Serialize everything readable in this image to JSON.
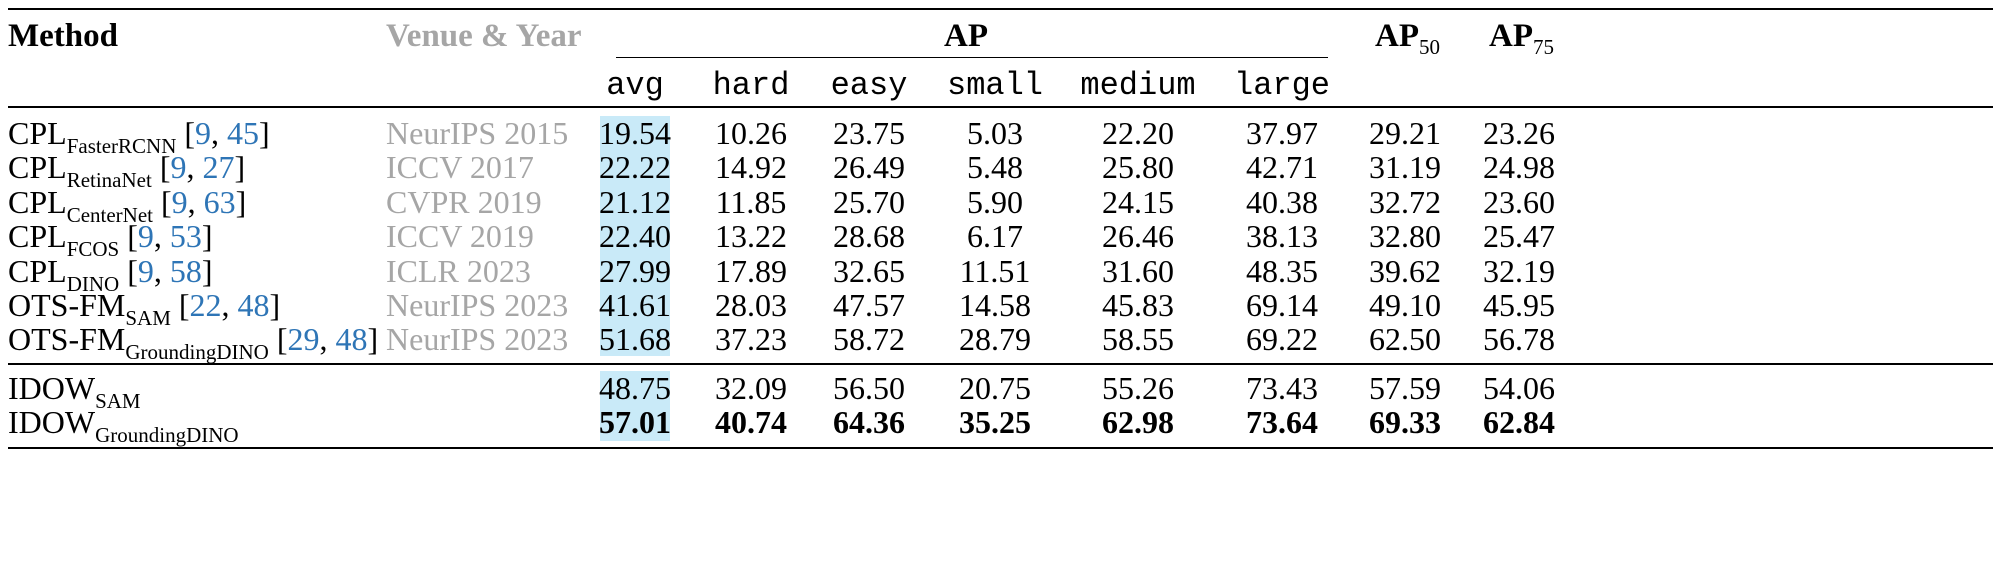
{
  "header": {
    "method": "Method",
    "venue": "Venue & Year",
    "ap": "AP",
    "ap50_main": "AP",
    "ap50_sub": "50",
    "ap75_main": "AP",
    "ap75_sub": "75",
    "sub_columns": [
      "avg",
      "hard",
      "easy",
      "small",
      "medium",
      "large"
    ]
  },
  "rows": [
    {
      "main": "CPL",
      "sub": "FasterRCNN",
      "cites": [
        "9",
        "45"
      ],
      "venue": "NeurIPS 2015",
      "values": [
        "19.54",
        "10.26",
        "23.75",
        "5.03",
        "22.20",
        "37.97",
        "29.21",
        "23.26"
      ]
    },
    {
      "main": "CPL",
      "sub": "RetinaNet",
      "cites": [
        "9",
        "27"
      ],
      "venue": "ICCV 2017",
      "values": [
        "22.22",
        "14.92",
        "26.49",
        "5.48",
        "25.80",
        "42.71",
        "31.19",
        "24.98"
      ]
    },
    {
      "main": "CPL",
      "sub": "CenterNet",
      "cites": [
        "9",
        "63"
      ],
      "venue": "CVPR 2019",
      "values": [
        "21.12",
        "11.85",
        "25.70",
        "5.90",
        "24.15",
        "40.38",
        "32.72",
        "23.60"
      ]
    },
    {
      "main": "CPL",
      "sub": "FCOS",
      "cites": [
        "9",
        "53"
      ],
      "venue": "ICCV 2019",
      "values": [
        "22.40",
        "13.22",
        "28.68",
        "6.17",
        "26.46",
        "38.13",
        "32.80",
        "25.47"
      ]
    },
    {
      "main": "CPL",
      "sub": "DINO",
      "cites": [
        "9",
        "58"
      ],
      "venue": "ICLR 2023",
      "values": [
        "27.99",
        "17.89",
        "32.65",
        "11.51",
        "31.60",
        "48.35",
        "39.62",
        "32.19"
      ]
    },
    {
      "main": "OTS-FM",
      "sub": "SAM",
      "cites": [
        "22",
        "48"
      ],
      "venue": "NeurIPS 2023",
      "values": [
        "41.61",
        "28.03",
        "47.57",
        "14.58",
        "45.83",
        "69.14",
        "49.10",
        "45.95"
      ]
    },
    {
      "main": "OTS-FM",
      "sub": "GroundingDINO",
      "cites": [
        "29",
        "48"
      ],
      "venue": "NeurIPS 2023",
      "values": [
        "51.68",
        "37.23",
        "58.72",
        "28.79",
        "58.55",
        "69.22",
        "62.50",
        "56.78"
      ]
    },
    {
      "main": "IDOW",
      "sub": "SAM",
      "cites": [],
      "venue": "",
      "values": [
        "48.75",
        "32.09",
        "56.50",
        "20.75",
        "55.26",
        "73.43",
        "57.59",
        "54.06"
      ]
    },
    {
      "main": "IDOW",
      "sub": "GroundingDINO",
      "cites": [],
      "venue": "",
      "values": [
        "57.01",
        "40.74",
        "64.36",
        "35.25",
        "62.98",
        "73.64",
        "69.33",
        "62.84"
      ],
      "bold": true
    }
  ],
  "colors": {
    "highlight": "#c9eaf8",
    "venue": "#a6a6a6",
    "citation": "#2e75b6"
  }
}
